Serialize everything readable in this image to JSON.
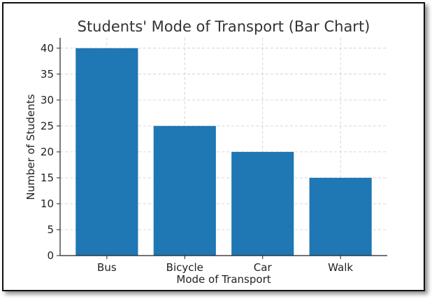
{
  "chart_data": {
    "type": "bar",
    "title": "Students' Mode of Transport (Bar Chart)",
    "xlabel": "Mode of Transport",
    "ylabel": "Number of Students",
    "categories": [
      "Bus",
      "Bicycle",
      "Car",
      "Walk"
    ],
    "values": [
      40,
      25,
      20,
      15
    ],
    "ylim": [
      0,
      42
    ],
    "yticks": [
      0,
      5,
      10,
      15,
      20,
      25,
      30,
      35,
      40
    ],
    "grid": true,
    "bar_color": "#1f77b4",
    "grid_color": "#cccccc"
  }
}
